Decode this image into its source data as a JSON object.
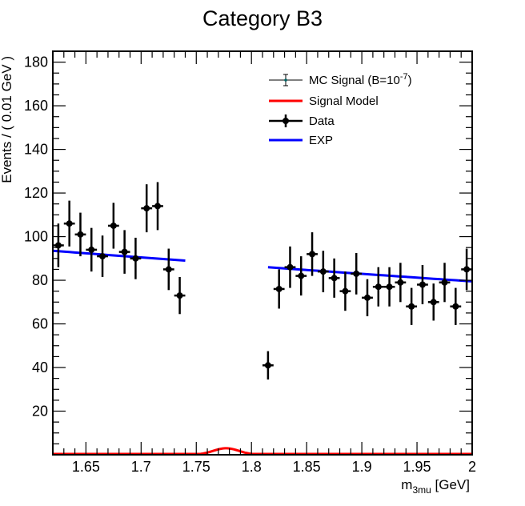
{
  "chart_data": {
    "type": "scatter",
    "title": "Category B3",
    "xlabel": {
      "main": "m",
      "sub": "3mu",
      "unit": " [GeV]"
    },
    "ylabel": "Events / ( 0.01 GeV )",
    "xlim": [
      1.62,
      2.0
    ],
    "ylim": [
      0,
      185
    ],
    "xticks": [
      {
        "v": 1.65,
        "label": "1.65"
      },
      {
        "v": 1.7,
        "label": "1.7"
      },
      {
        "v": 1.75,
        "label": "1.75"
      },
      {
        "v": 1.8,
        "label": "1.8"
      },
      {
        "v": 1.85,
        "label": "1.85"
      },
      {
        "v": 1.9,
        "label": "1.9"
      },
      {
        "v": 1.95,
        "label": "1.95"
      },
      {
        "v": 2.0,
        "label": "2"
      }
    ],
    "yticks": [
      {
        "v": 20,
        "label": "20"
      },
      {
        "v": 40,
        "label": "40"
      },
      {
        "v": 60,
        "label": "60"
      },
      {
        "v": 80,
        "label": "80"
      },
      {
        "v": 100,
        "label": "100"
      },
      {
        "v": 120,
        "label": "120"
      },
      {
        "v": 140,
        "label": "140"
      },
      {
        "v": 160,
        "label": "160"
      },
      {
        "v": 180,
        "label": "180"
      }
    ],
    "legend": {
      "position": "top-right",
      "entries": [
        {
          "label": "MC Signal (B=10",
          "sup": "-7",
          "suffix": ")",
          "style": "mc"
        },
        {
          "label": "Signal Model",
          "style": "red-line"
        },
        {
          "label": "Data",
          "style": "data"
        },
        {
          "label": "EXP",
          "style": "blue-line"
        }
      ]
    },
    "colors": {
      "data": "#000000",
      "exp": "#0000ff",
      "signal": "#ff0000",
      "mc": "#006666"
    },
    "data_points": [
      {
        "x": 1.625,
        "y": 96,
        "err": 10
      },
      {
        "x": 1.635,
        "y": 106,
        "err": 10.5
      },
      {
        "x": 1.645,
        "y": 101,
        "err": 10
      },
      {
        "x": 1.655,
        "y": 94,
        "err": 10
      },
      {
        "x": 1.665,
        "y": 91,
        "err": 9.5
      },
      {
        "x": 1.675,
        "y": 105,
        "err": 10.5
      },
      {
        "x": 1.685,
        "y": 93,
        "err": 10
      },
      {
        "x": 1.695,
        "y": 90,
        "err": 9.5
      },
      {
        "x": 1.705,
        "y": 113,
        "err": 11
      },
      {
        "x": 1.715,
        "y": 114,
        "err": 11
      },
      {
        "x": 1.725,
        "y": 85,
        "err": 9.5
      },
      {
        "x": 1.735,
        "y": 73,
        "err": 8.5
      },
      {
        "x": 1.815,
        "y": 41,
        "err": 6.5
      },
      {
        "x": 1.825,
        "y": 76,
        "err": 9
      },
      {
        "x": 1.835,
        "y": 86,
        "err": 9.5
      },
      {
        "x": 1.845,
        "y": 82,
        "err": 9
      },
      {
        "x": 1.855,
        "y": 92,
        "err": 10
      },
      {
        "x": 1.865,
        "y": 84,
        "err": 9.5
      },
      {
        "x": 1.875,
        "y": 81,
        "err": 9
      },
      {
        "x": 1.885,
        "y": 75,
        "err": 9
      },
      {
        "x": 1.895,
        "y": 83,
        "err": 9.5
      },
      {
        "x": 1.905,
        "y": 72,
        "err": 8.5
      },
      {
        "x": 1.915,
        "y": 77,
        "err": 9
      },
      {
        "x": 1.925,
        "y": 77,
        "err": 9
      },
      {
        "x": 1.935,
        "y": 79,
        "err": 9
      },
      {
        "x": 1.945,
        "y": 68,
        "err": 8.5
      },
      {
        "x": 1.955,
        "y": 78,
        "err": 9
      },
      {
        "x": 1.965,
        "y": 70,
        "err": 8.5
      },
      {
        "x": 1.975,
        "y": 79,
        "err": 9
      },
      {
        "x": 1.985,
        "y": 68,
        "err": 8.5
      },
      {
        "x": 1.995,
        "y": 85,
        "err": 9.5
      }
    ],
    "exp_segments": [
      {
        "x": [
          1.62,
          1.74
        ],
        "y": [
          93.5,
          89
        ]
      },
      {
        "x": [
          1.815,
          2.0
        ],
        "y": [
          86,
          79.5
        ]
      }
    ],
    "signal_model": {
      "mean": 1.777,
      "sigma": 0.0115,
      "peak": 3.0,
      "xrange": [
        1.62,
        2.0
      ]
    }
  }
}
